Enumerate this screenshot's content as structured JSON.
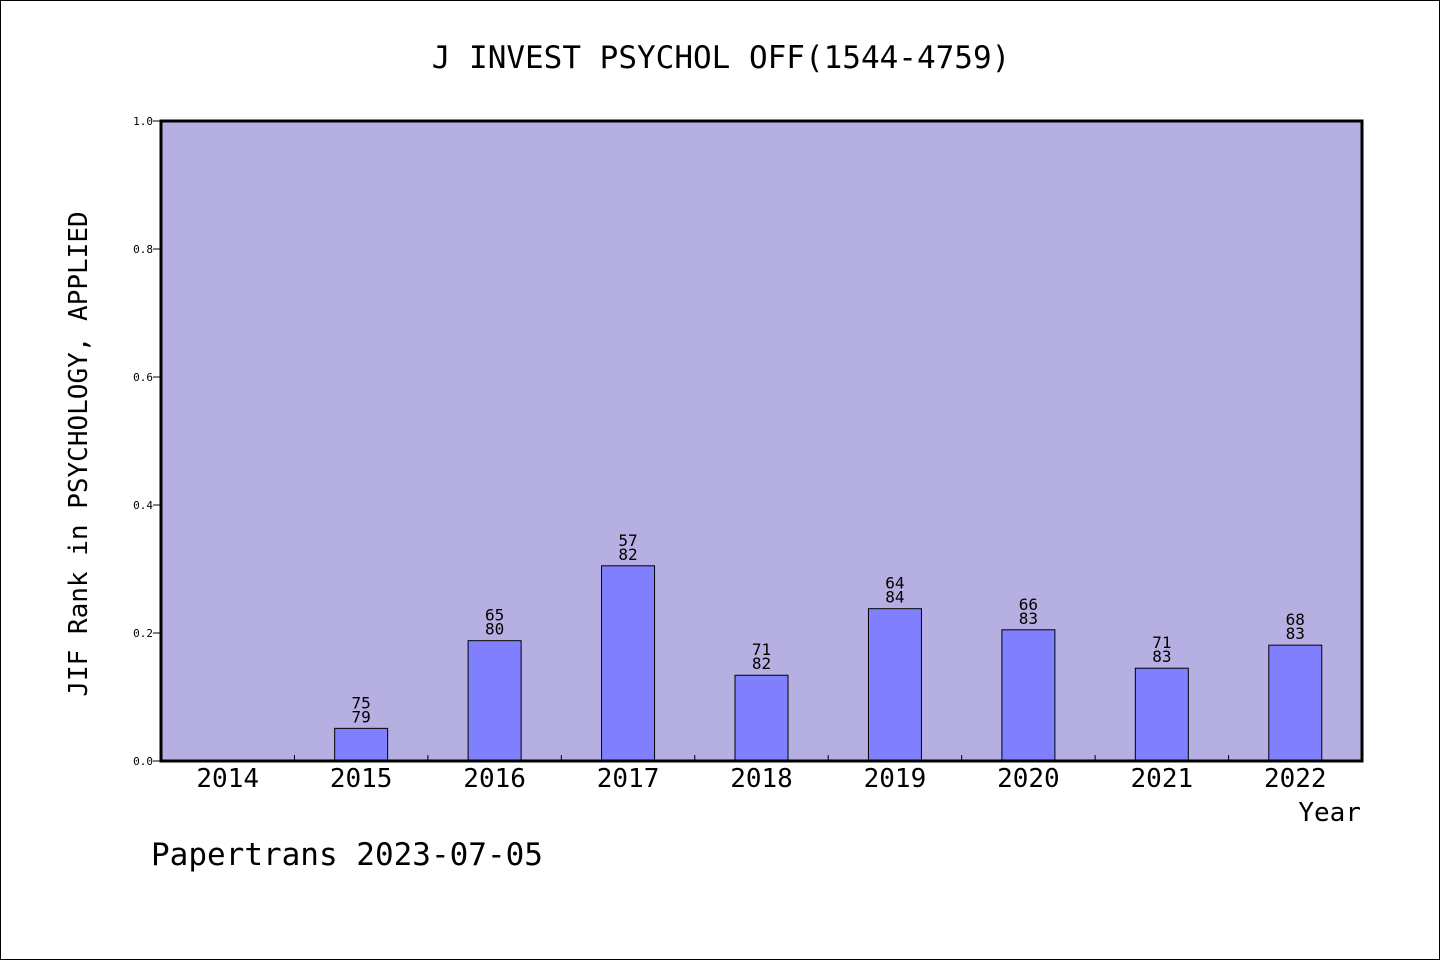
{
  "chart_data": {
    "type": "bar",
    "title": "J INVEST PSYCHOL OFF(1544-4759)",
    "xlabel": "Year",
    "ylabel": "JIF Rank in PSYCHOLOGY, APPLIED",
    "ylim": [
      0,
      1.0
    ],
    "yticks": [
      "0.0",
      "0.2",
      "0.4",
      "0.6",
      "0.8",
      "1.0"
    ],
    "categories": [
      "2014",
      "2015",
      "2016",
      "2017",
      "2018",
      "2019",
      "2020",
      "2021",
      "2022"
    ],
    "values": [
      null,
      0.051,
      0.188,
      0.305,
      0.134,
      0.238,
      0.205,
      0.145,
      0.181
    ],
    "labels": [
      null,
      {
        "rank": "75",
        "total": "79"
      },
      {
        "rank": "65",
        "total": "80"
      },
      {
        "rank": "57",
        "total": "82"
      },
      {
        "rank": "71",
        "total": "82"
      },
      {
        "rank": "64",
        "total": "84"
      },
      {
        "rank": "66",
        "total": "83"
      },
      {
        "rank": "71",
        "total": "83"
      },
      {
        "rank": "68",
        "total": "83"
      }
    ],
    "grid": false,
    "colors": {
      "plot_background": "#b6b0e2",
      "bar_fill": "#8080ff",
      "bar_stroke": "#000000"
    }
  },
  "footer": "Papertrans 2023-07-05"
}
